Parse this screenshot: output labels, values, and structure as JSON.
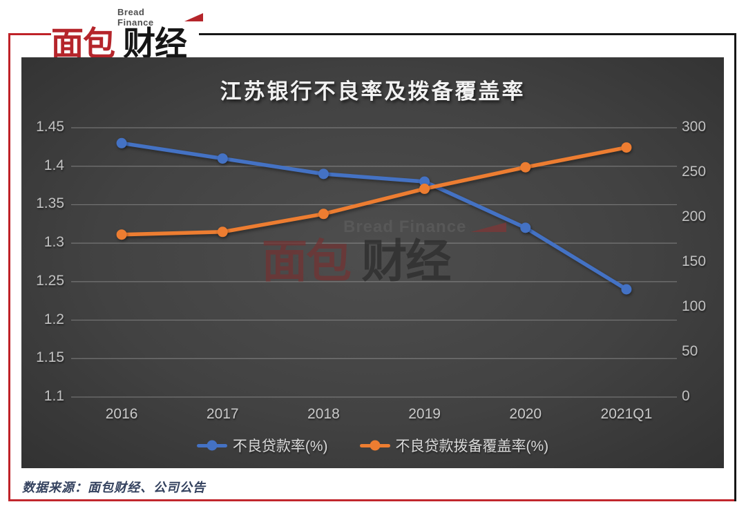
{
  "logo": {
    "tagline": "Bread Finance",
    "name_primary": "面包",
    "name_secondary": "财经"
  },
  "chart_data": {
    "type": "line",
    "title": "江苏银行不良率及拨备覆盖率",
    "categories": [
      "2016",
      "2017",
      "2018",
      "2019",
      "2020",
      "2021Q1"
    ],
    "series": [
      {
        "name": "不良贷款率(%)",
        "axis": "left",
        "color": "#4472c4",
        "values": [
          1.43,
          1.41,
          1.39,
          1.38,
          1.32,
          1.24
        ]
      },
      {
        "name": "不良贷款拨备覆盖率(%)",
        "axis": "right",
        "color": "#ed7d31",
        "values": [
          181,
          184,
          204,
          232,
          256,
          278
        ]
      }
    ],
    "left_axis": {
      "min": 1.1,
      "max": 1.45,
      "ticks": [
        "1.45",
        "1.4",
        "1.35",
        "1.3",
        "1.25",
        "1.2",
        "1.15",
        "1.1"
      ]
    },
    "right_axis": {
      "min": 0,
      "max": 300,
      "ticks": [
        "300",
        "250",
        "200",
        "150",
        "100",
        "50",
        "0"
      ]
    },
    "grid": true,
    "legend_position": "bottom",
    "gridline_color": "rgba(255,255,255,0.28)"
  },
  "watermark": {
    "tagline": "Bread Finance",
    "name_primary": "面包",
    "name_secondary": "财经"
  },
  "footer": {
    "source": "数据来源：面包财经、公司公告"
  }
}
